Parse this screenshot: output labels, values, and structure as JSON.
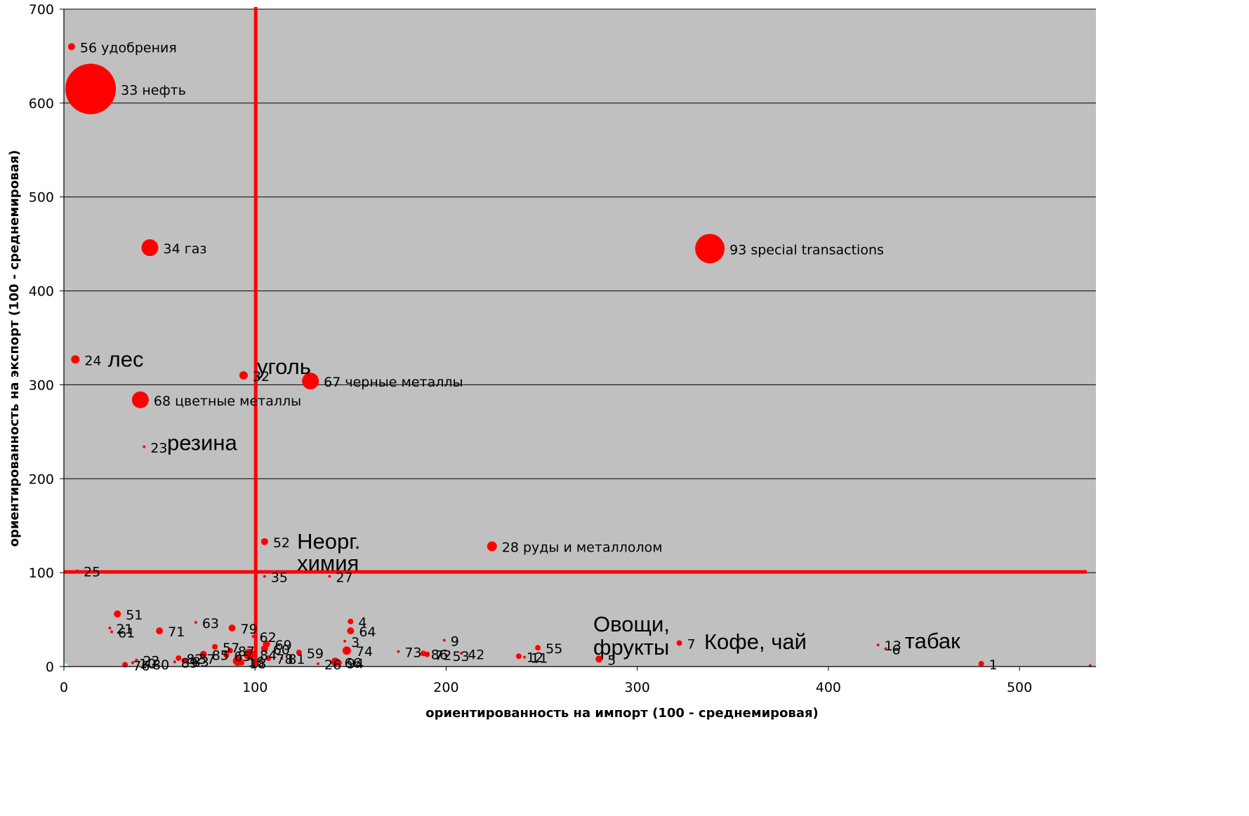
{
  "chart_data": {
    "type": "scatter",
    "xlabel": "ориентированность на импорт (100 - среднемировая)",
    "ylabel": "ориентированность на экспорт (100 - среднемировая)",
    "xlim": [
      0,
      540
    ],
    "ylim": [
      0,
      700
    ],
    "x_ticks": [
      0,
      100,
      200,
      300,
      400,
      500
    ],
    "y_ticks": [
      0,
      100,
      200,
      300,
      400,
      500,
      600,
      700
    ],
    "grid": "horizontal",
    "background": "#c0c0c0",
    "point_color": "#ff0000",
    "reference_lines": [
      {
        "orientation": "vertical",
        "value": 100,
        "color": "#ff0000"
      },
      {
        "orientation": "horizontal",
        "value": 100,
        "color": "#ff0000"
      }
    ],
    "points": [
      {
        "x": 4,
        "y": 660,
        "size": 5,
        "label": "56 удобрения"
      },
      {
        "x": 14,
        "y": 615,
        "size": 36,
        "label": "33 нефть"
      },
      {
        "x": 45,
        "y": 446,
        "size": 12,
        "label": "34 газ"
      },
      {
        "x": 338,
        "y": 445,
        "size": 21,
        "label": "93 special transactions"
      },
      {
        "x": 6,
        "y": 327,
        "size": 6,
        "label": "24"
      },
      {
        "x": 94,
        "y": 310,
        "size": 6,
        "label": "32"
      },
      {
        "x": 129,
        "y": 304,
        "size": 12,
        "label": "67 черные металлы"
      },
      {
        "x": 40,
        "y": 284,
        "size": 12,
        "label": "68 цветные металлы"
      },
      {
        "x": 42,
        "y": 234,
        "size": 2,
        "label": "23"
      },
      {
        "x": 105,
        "y": 133,
        "size": 5,
        "label": "52"
      },
      {
        "x": 224,
        "y": 128,
        "size": 7,
        "label": "28 руды и металлолом"
      },
      {
        "x": 7,
        "y": 102,
        "size": 2,
        "label": "25"
      },
      {
        "x": 105,
        "y": 96,
        "size": 2,
        "label": "35"
      },
      {
        "x": 139,
        "y": 96,
        "size": 2,
        "label": "27"
      },
      {
        "x": 28,
        "y": 56,
        "size": 5,
        "label": "51"
      },
      {
        "x": 24,
        "y": 41,
        "size": 2,
        "label": "21"
      },
      {
        "x": 25,
        "y": 37,
        "size": 2,
        "label": "61"
      },
      {
        "x": 50,
        "y": 38,
        "size": 5,
        "label": "71"
      },
      {
        "x": 69,
        "y": 47,
        "size": 2,
        "label": "63"
      },
      {
        "x": 88,
        "y": 41,
        "size": 5,
        "label": "79"
      },
      {
        "x": 150,
        "y": 48,
        "size": 4,
        "label": "4"
      },
      {
        "x": 150,
        "y": 38,
        "size": 5,
        "label": "64"
      },
      {
        "x": 99,
        "y": 32,
        "size": 2,
        "label": "62"
      },
      {
        "x": 106,
        "y": 24,
        "size": 5,
        "label": "69"
      },
      {
        "x": 105,
        "y": 19,
        "size": 5,
        "label": "60"
      },
      {
        "x": 147,
        "y": 27,
        "size": 2,
        "label": "3"
      },
      {
        "x": 199,
        "y": 28,
        "size": 2,
        "label": "9"
      },
      {
        "x": 79,
        "y": 21,
        "size": 4,
        "label": "57"
      },
      {
        "x": 87,
        "y": 17,
        "size": 4,
        "label": "87"
      },
      {
        "x": 123,
        "y": 15,
        "size": 4,
        "label": "59"
      },
      {
        "x": 148,
        "y": 17,
        "size": 6,
        "label": "74"
      },
      {
        "x": 175,
        "y": 16,
        "size": 2,
        "label": "73"
      },
      {
        "x": 188,
        "y": 14,
        "size": 4,
        "label": "86"
      },
      {
        "x": 190,
        "y": 13,
        "size": 4,
        "label": "72"
      },
      {
        "x": 200,
        "y": 12,
        "size": 2,
        "label": "53"
      },
      {
        "x": 208,
        "y": 14,
        "size": 2,
        "label": "42"
      },
      {
        "x": 248,
        "y": 20,
        "size": 4,
        "label": "55"
      },
      {
        "x": 238,
        "y": 11,
        "size": 4,
        "label": "12"
      },
      {
        "x": 241,
        "y": 10,
        "size": 2,
        "label": "11"
      },
      {
        "x": 280,
        "y": 8,
        "size": 5,
        "label": "5"
      },
      {
        "x": 322,
        "y": 25,
        "size": 4,
        "label": "7"
      },
      {
        "x": 426,
        "y": 23,
        "size": 2,
        "label": "13"
      },
      {
        "x": 430,
        "y": 19,
        "size": 2,
        "label": "6"
      },
      {
        "x": 480,
        "y": 3,
        "size": 4,
        "label": "1"
      },
      {
        "x": 73,
        "y": 13,
        "size": 5,
        "label": "85"
      },
      {
        "x": 85,
        "y": 12,
        "size": 4,
        "label": "65"
      },
      {
        "x": 97,
        "y": 13,
        "size": 8,
        "label": "84"
      },
      {
        "x": 107,
        "y": 9,
        "size": 4,
        "label": "78"
      },
      {
        "x": 114,
        "y": 9,
        "size": 2,
        "label": "81"
      },
      {
        "x": 91,
        "y": 6,
        "size": 7,
        "label": "16"
      },
      {
        "x": 93,
        "y": 4,
        "size": 4,
        "label": "18"
      },
      {
        "x": 142,
        "y": 5,
        "size": 6,
        "label": "66"
      },
      {
        "x": 144,
        "y": 4,
        "size": 4,
        "label": "94"
      },
      {
        "x": 133,
        "y": 3,
        "size": 2,
        "label": "26"
      },
      {
        "x": 38,
        "y": 7,
        "size": 2,
        "label": "22"
      },
      {
        "x": 36,
        "y": 4,
        "size": 2,
        "label": "10"
      },
      {
        "x": 32,
        "y": 2,
        "size": 4,
        "label": "76"
      },
      {
        "x": 43,
        "y": 3,
        "size": 2,
        "label": "80"
      },
      {
        "x": 60,
        "y": 9,
        "size": 4,
        "label": "82"
      },
      {
        "x": 63,
        "y": 6,
        "size": 4,
        "label": "83"
      },
      {
        "x": 67,
        "y": 9,
        "size": 2,
        "label": "37"
      },
      {
        "x": 58,
        "y": 5,
        "size": 2,
        "label": "89"
      },
      {
        "x": 1,
        "y": 1,
        "size": 3,
        "label": "",
        "color": "#c8ffff"
      },
      {
        "x": 537,
        "y": 1,
        "size": 2,
        "label": ""
      }
    ],
    "annotations": [
      {
        "text": "лес",
        "x": 23,
        "y": 327
      },
      {
        "text": "уголь",
        "x": 101,
        "y": 319
      },
      {
        "text": "резина",
        "x": 54,
        "y": 238
      },
      {
        "text": "Неорг.",
        "x": 122,
        "y": 133
      },
      {
        "text": "химия",
        "x": 122,
        "y": 110
      },
      {
        "text": "Овощи,",
        "x": 277,
        "y": 45
      },
      {
        "text": "фрукты",
        "x": 277,
        "y": 20
      },
      {
        "text": "Кофе, чай",
        "x": 335,
        "y": 26
      },
      {
        "text": "табак",
        "x": 440,
        "y": 27
      }
    ]
  }
}
